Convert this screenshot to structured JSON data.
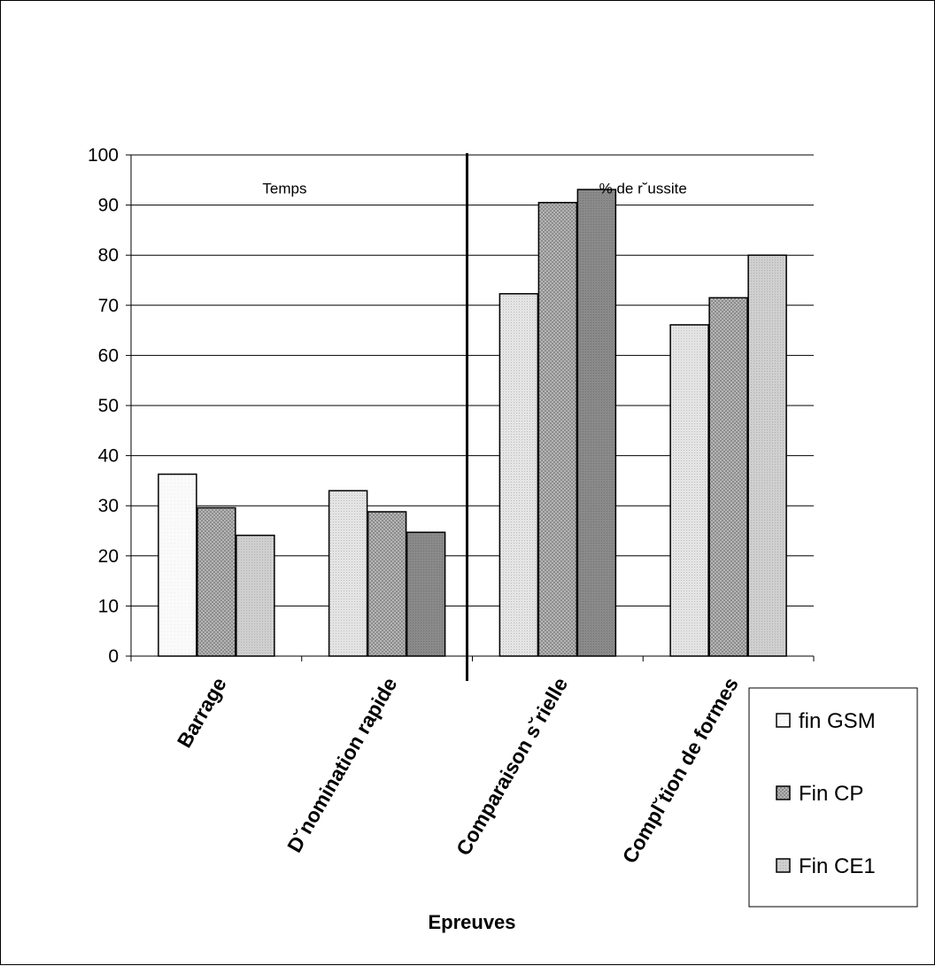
{
  "chart_data": {
    "type": "bar",
    "xlabel": "Epreuves",
    "ylabel": "",
    "ylim": [
      0,
      100
    ],
    "yticks": [
      0,
      10,
      20,
      30,
      40,
      50,
      60,
      70,
      80,
      90,
      100
    ],
    "grid": true,
    "legend_position": "bottom-right",
    "categories": [
      "Barrage",
      "D˘nomination rapide",
      "Comparaison s˘rielle",
      "Compl˘tion de formes"
    ],
    "series": [
      {
        "name": "fin GSM",
        "values": [
          36.3,
          33.0,
          72.3,
          66.1
        ]
      },
      {
        "name": "Fin CP",
        "values": [
          29.6,
          28.8,
          90.5,
          71.5
        ]
      },
      {
        "name": "Fin CE1",
        "values": [
          24.1,
          24.7,
          93.1,
          80.0
        ]
      }
    ],
    "annotations": [
      {
        "text": "Temps",
        "x_category_index": 0.9,
        "y": 87
      },
      {
        "text": "% de r˘ussite",
        "x_category_index": 3.0,
        "y": 87
      }
    ],
    "separator_between_categories": [
      1,
      2
    ]
  }
}
